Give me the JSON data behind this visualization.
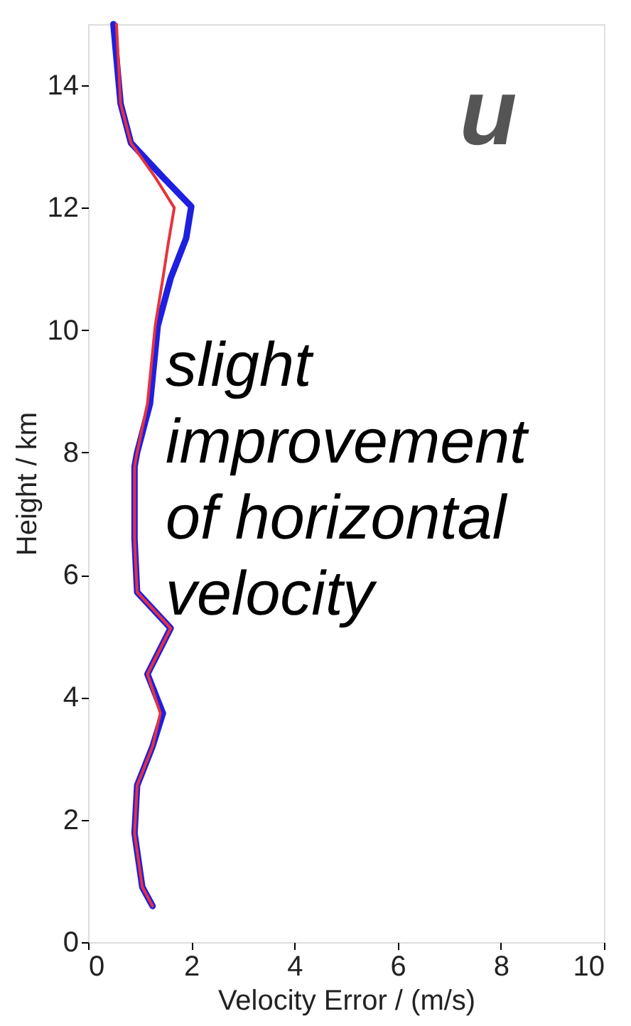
{
  "chart_data": {
    "type": "line",
    "xlabel": "Velocity Error / (m/s)",
    "ylabel": "Height / km",
    "xlim": [
      0,
      10
    ],
    "xticks": [
      0,
      2,
      4,
      6,
      8,
      10
    ],
    "ylim": [
      0,
      15
    ],
    "yticks": [
      0,
      2,
      4,
      6,
      8,
      10,
      12,
      14
    ],
    "grid": false,
    "marker": "none",
    "line_style": "solid",
    "annotations": [
      "u",
      "slight\nimprovement\nof horizontal\nvelocity"
    ],
    "series": [
      {
        "color": "#1f1fe0",
        "x": [
          0.49,
          0.63,
          0.83,
          1.45,
          2.0,
          1.9,
          1.6,
          1.35,
          1.2,
          0.95,
          0.9,
          0.9,
          0.95,
          1.6,
          1.15,
          1.45,
          1.25,
          0.95,
          0.9,
          1.05,
          1.25
        ],
        "values": [
          15.0,
          13.7,
          13.06,
          12.5,
          12.02,
          11.5,
          10.85,
          10.07,
          8.8,
          8.0,
          7.77,
          6.59,
          5.72,
          5.13,
          4.38,
          3.74,
          3.2,
          2.56,
          1.78,
          0.9,
          0.59
        ]
      },
      {
        "color": "#e8323c",
        "x": [
          0.55,
          0.63,
          0.83,
          1.3,
          1.67,
          1.55,
          1.45,
          1.3,
          1.15,
          0.95,
          0.9,
          0.9,
          0.95,
          1.6,
          1.15,
          1.4,
          1.25,
          0.95,
          0.9,
          1.05,
          1.25
        ],
        "values": [
          15.0,
          13.7,
          13.06,
          12.5,
          12.0,
          11.4,
          10.85,
          10.07,
          8.8,
          8.0,
          7.77,
          6.59,
          5.72,
          5.13,
          4.38,
          3.74,
          3.2,
          2.56,
          1.78,
          0.9,
          0.59
        ]
      }
    ]
  }
}
